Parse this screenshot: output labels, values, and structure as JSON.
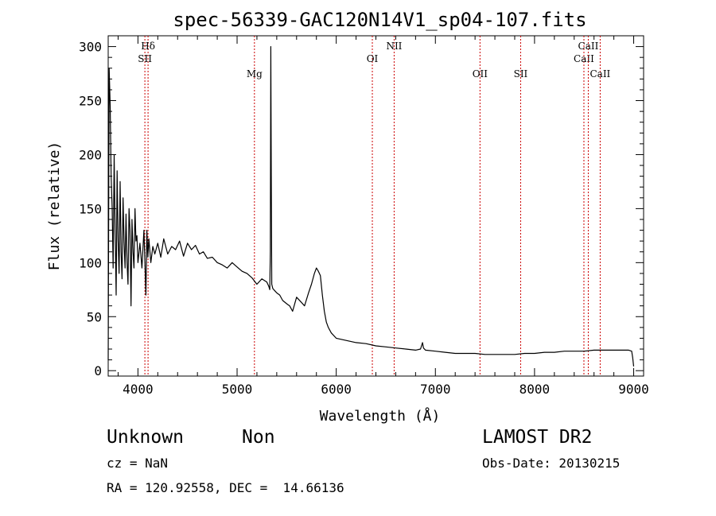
{
  "chart_data": {
    "type": "line",
    "title": "spec-56339-GAC120N14V1_sp04-107.fits",
    "xlabel": "Wavelength (Å)",
    "ylabel": "Flux (relative)",
    "xlim": [
      3700,
      9100
    ],
    "ylim": [
      -5,
      310
    ],
    "xticks": [
      4000,
      5000,
      6000,
      7000,
      8000,
      9000
    ],
    "yticks": [
      0,
      50,
      100,
      150,
      200,
      250,
      300
    ],
    "grid": false,
    "series": [
      {
        "name": "flux",
        "x": [
          3700,
          3710,
          3720,
          3730,
          3740,
          3750,
          3760,
          3770,
          3780,
          3790,
          3800,
          3810,
          3820,
          3830,
          3840,
          3850,
          3860,
          3870,
          3880,
          3890,
          3900,
          3910,
          3920,
          3930,
          3940,
          3950,
          3960,
          3970,
          3980,
          3990,
          4000,
          4020,
          4040,
          4060,
          4080,
          4090,
          4100,
          4110,
          4130,
          4150,
          4170,
          4200,
          4230,
          4260,
          4300,
          4340,
          4380,
          4420,
          4460,
          4500,
          4540,
          4580,
          4620,
          4660,
          4700,
          4750,
          4800,
          4850,
          4900,
          4950,
          5000,
          5050,
          5100,
          5150,
          5200,
          5250,
          5300,
          5320,
          5330,
          5335,
          5340,
          5345,
          5350,
          5360,
          5380,
          5400,
          5430,
          5460,
          5500,
          5530,
          5560,
          5600,
          5640,
          5680,
          5720,
          5750,
          5780,
          5800,
          5820,
          5840,
          5860,
          5880,
          5900,
          5920,
          5950,
          6000,
          6050,
          6100,
          6200,
          6300,
          6400,
          6500,
          6600,
          6700,
          6800,
          6850,
          6870,
          6880,
          6900,
          7000,
          7100,
          7200,
          7300,
          7400,
          7500,
          7600,
          7700,
          7800,
          7900,
          8000,
          8100,
          8200,
          8300,
          8400,
          8500,
          8600,
          8700,
          8800,
          8900,
          8950,
          8980,
          8990,
          9000
        ],
        "y": [
          10,
          280,
          245,
          180,
          150,
          95,
          200,
          130,
          70,
          185,
          120,
          90,
          175,
          110,
          85,
          160,
          120,
          95,
          145,
          100,
          80,
          150,
          130,
          60,
          140,
          110,
          95,
          150,
          120,
          125,
          100,
          118,
          95,
          130,
          70,
          130,
          105,
          122,
          100,
          115,
          108,
          118,
          105,
          122,
          108,
          115,
          112,
          120,
          106,
          118,
          112,
          116,
          108,
          110,
          104,
          105,
          100,
          98,
          95,
          100,
          96,
          92,
          90,
          86,
          80,
          85,
          82,
          78,
          75,
          110,
          300,
          180,
          80,
          76,
          74,
          72,
          70,
          65,
          62,
          60,
          55,
          68,
          64,
          60,
          72,
          80,
          90,
          95,
          92,
          88,
          70,
          55,
          45,
          40,
          35,
          30,
          29,
          28,
          26,
          25,
          23,
          22,
          21,
          20,
          19,
          20,
          26,
          21,
          19,
          18,
          17,
          16,
          16,
          16,
          15,
          15,
          15,
          15,
          16,
          16,
          17,
          17,
          18,
          18,
          18,
          19,
          19,
          19,
          19,
          19,
          18,
          12,
          4
        ],
        "color": "#000000"
      }
    ],
    "annotations": [
      {
        "label": "Hδ",
        "x": 4102,
        "level": 0
      },
      {
        "label": "SII",
        "x": 4070,
        "level": 1
      },
      {
        "label": "Mg",
        "x": 5175,
        "level": 2
      },
      {
        "label": "OI",
        "x": 6364,
        "level": 1
      },
      {
        "label": "NII",
        "x": 6584,
        "level": 0
      },
      {
        "label": "OII",
        "x": 7450,
        "level": 2
      },
      {
        "label": "SII",
        "x": 7860,
        "level": 2
      },
      {
        "label": "CaII",
        "x": 8498,
        "level": 1
      },
      {
        "label": "CaII",
        "x": 8542,
        "level": 0
      },
      {
        "label": "CaII",
        "x": 8662,
        "level": 2
      }
    ],
    "line_color": "#cc0000"
  },
  "info": {
    "class": "Unknown",
    "subclass": "Non",
    "survey": "LAMOST DR2",
    "cz": "cz = NaN",
    "obs_date": "Obs-Date: 20130215",
    "radec": "RA = 120.92558, DEC =  14.66136"
  }
}
